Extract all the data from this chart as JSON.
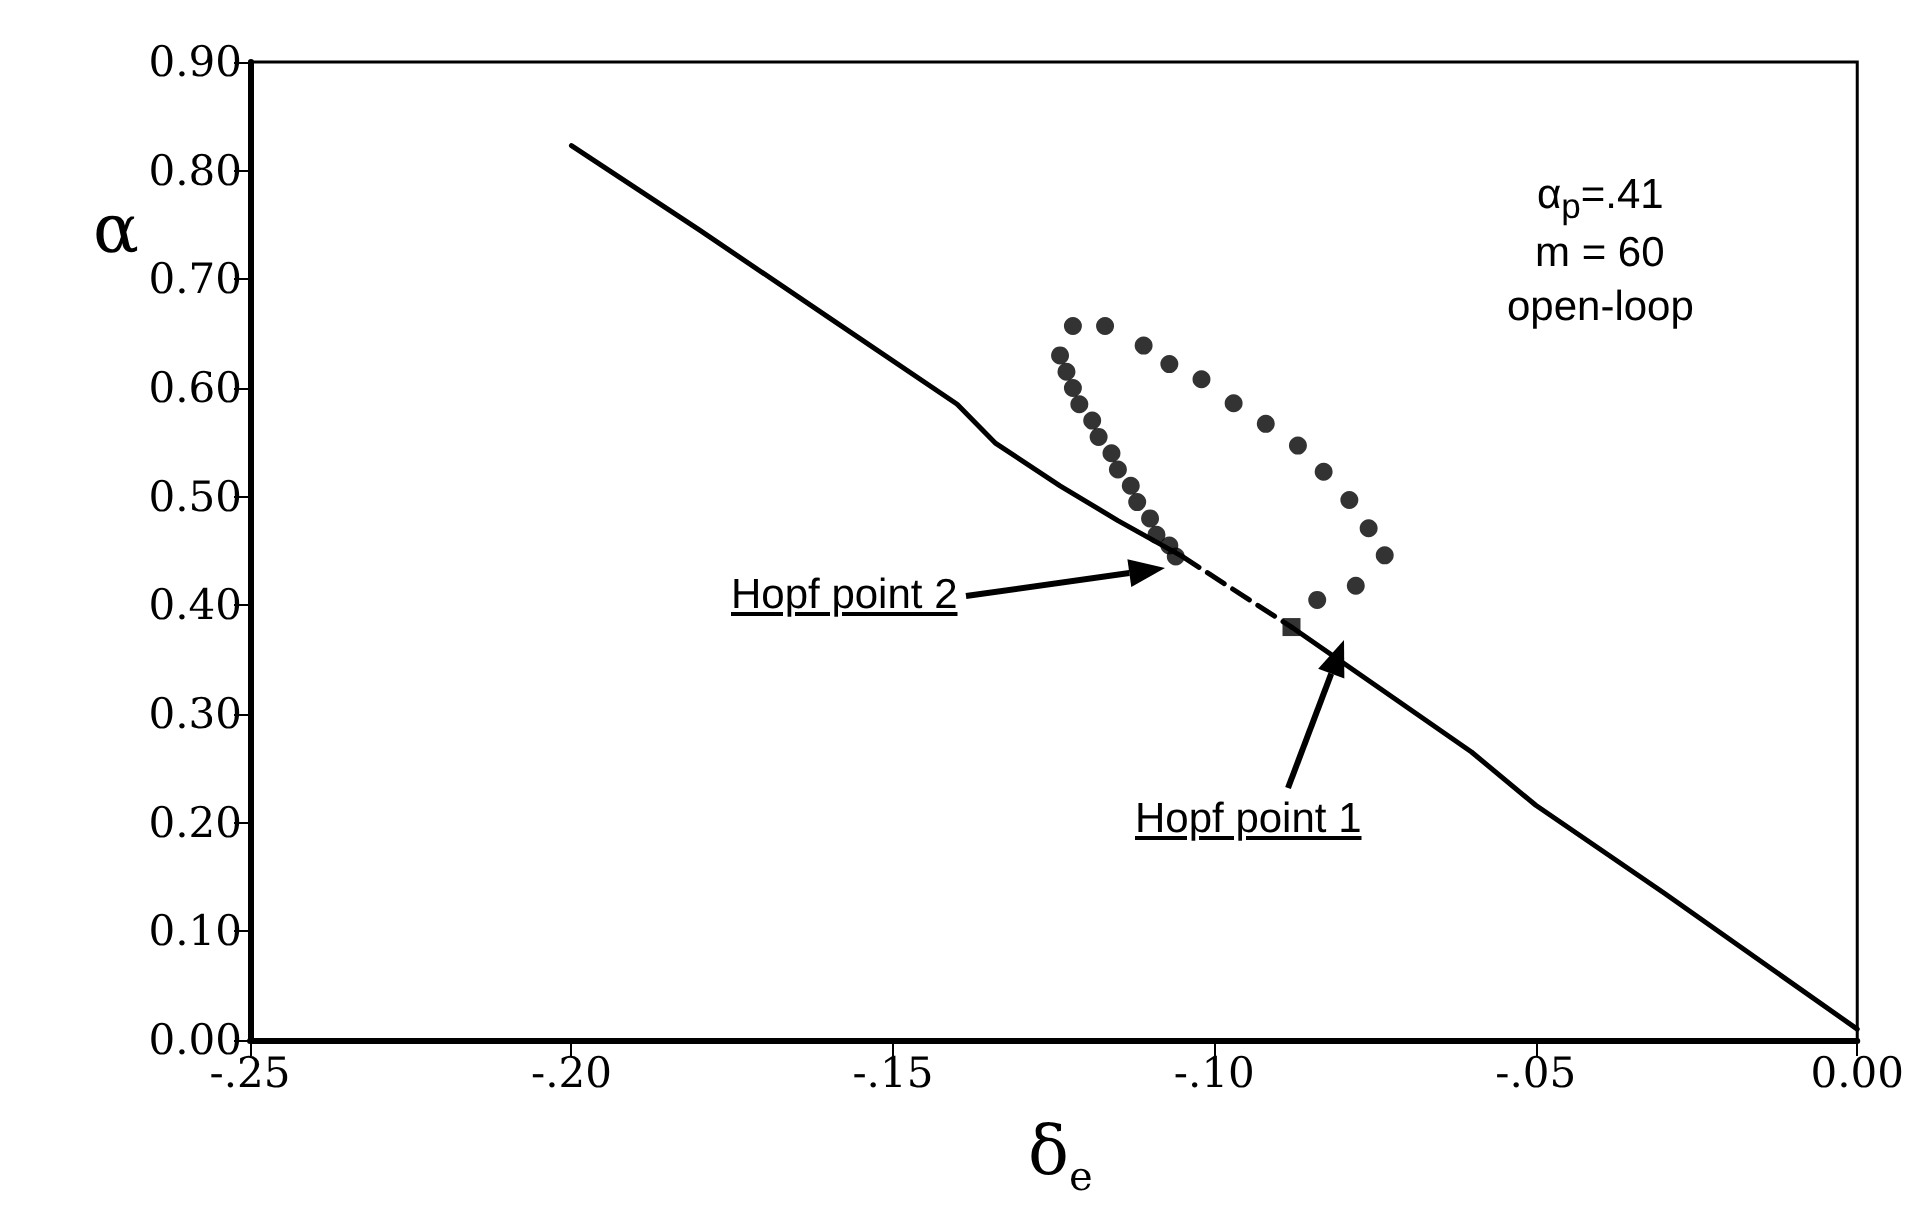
{
  "chart_data": {
    "type": "line",
    "xlabel": "δ$_{e}$",
    "ylabel": "α",
    "xlim": [
      -0.25,
      0
    ],
    "ylim": [
      0,
      0.9
    ],
    "xticks": [
      {
        "value": -0.25,
        "label": "-.25"
      },
      {
        "value": -0.2,
        "label": "-.20"
      },
      {
        "value": -0.15,
        "label": "-.15"
      },
      {
        "value": -0.1,
        "label": "-.10"
      },
      {
        "value": -0.05,
        "label": "-.05"
      },
      {
        "value": 0,
        "label": "0.00"
      }
    ],
    "yticks": [
      {
        "value": 0,
        "label": "0.00"
      },
      {
        "value": 0.1,
        "label": "0.10"
      },
      {
        "value": 0.2,
        "label": "0.20"
      },
      {
        "value": 0.3,
        "label": "0.30"
      },
      {
        "value": 0.4,
        "label": "0.40"
      },
      {
        "value": 0.5,
        "label": "0.50"
      },
      {
        "value": 0.6,
        "label": "0.60"
      },
      {
        "value": 0.7,
        "label": "0.70"
      },
      {
        "value": 0.8,
        "label": "0.80"
      },
      {
        "value": 0.9,
        "label": "0.90"
      }
    ],
    "grid": false,
    "series": [
      {
        "color": "#000000",
        "marker": "none",
        "line_style": "solid",
        "x": [
          -0.2,
          -0.18,
          -0.16,
          -0.14,
          -0.134,
          -0.124,
          -0.115,
          -0.105
        ],
        "values": [
          0.823,
          0.745,
          0.665,
          0.585,
          0.549,
          0.51,
          0.478,
          0.445
        ]
      },
      {
        "color": "#000000",
        "marker": "none",
        "line_style": "dashed",
        "x": [
          -0.105,
          -0.088
        ],
        "values": [
          0.445,
          0.38
        ]
      },
      {
        "color": "#000000",
        "marker": "none",
        "line_style": "solid",
        "x": [
          -0.088,
          -0.06,
          -0.05,
          -0.03,
          0
        ],
        "values": [
          0.38,
          0.265,
          0.216,
          0.135,
          0.01
        ]
      },
      {
        "type": "scatter",
        "color": "#000000",
        "marker": "circle",
        "x": [
          -0.124,
          -0.123,
          -0.122,
          -0.121,
          -0.119,
          -0.118,
          -0.116,
          -0.115,
          -0.113,
          -0.112,
          -0.11,
          -0.109,
          -0.107,
          -0.106,
          -0.084,
          -0.078,
          -0.0735
        ],
        "values": [
          0.63,
          0.615,
          0.6,
          0.585,
          0.57,
          0.555,
          0.54,
          0.525,
          0.51,
          0.495,
          0.48,
          0.465,
          0.455,
          0.445,
          0.405,
          0.418,
          0.446
        ]
      },
      {
        "type": "scatter",
        "color": "#000000",
        "marker": "circle",
        "x": [
          -0.122,
          -0.117,
          -0.111,
          -0.107,
          -0.102,
          -0.097,
          -0.092,
          -0.087,
          -0.083,
          -0.079,
          -0.076
        ],
        "values": [
          0.657,
          0.657,
          0.639,
          0.622,
          0.608,
          0.586,
          0.567,
          0.547,
          0.523,
          0.497,
          0.471
        ]
      },
      {
        "type": "scatter",
        "color": "#000000",
        "marker": "square",
        "x": [
          -0.088
        ],
        "values": [
          0.38
        ]
      }
    ],
    "annotations": [
      "α$_{p}$=.41",
      "m = 60",
      "open-loop",
      "Hopf point 2",
      "Hopf point 1"
    ]
  }
}
